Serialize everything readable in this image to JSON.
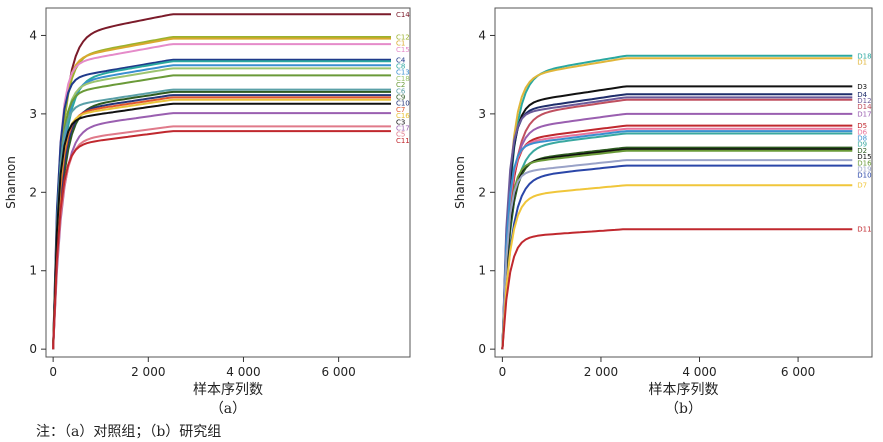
{
  "footnote": "注：（a）对照组；（b）研究组",
  "chart_data": [
    {
      "type": "line",
      "panel": "（a）",
      "xlabel": "样本序列数",
      "ylabel": "Shannon",
      "xticks": [
        "0",
        "2 000",
        "4 000",
        "6 000"
      ],
      "yticks": [
        "0",
        "1",
        "2",
        "3",
        "4"
      ],
      "xlim": [
        -150,
        7500
      ],
      "ylim": [
        -0.1,
        4.35
      ],
      "series": [
        {
          "name": "C14",
          "final": 4.27,
          "color": "#7b1b2a"
        },
        {
          "name": "C12",
          "final": 3.98,
          "color": "#9bb22d"
        },
        {
          "name": "C1",
          "final": 3.96,
          "color": "#d9a92e"
        },
        {
          "name": "C15",
          "final": 3.89,
          "color": "#e58bc9"
        },
        {
          "name": "C4",
          "final": 3.69,
          "color": "#1f3a8a"
        },
        {
          "name": "C8",
          "final": 3.67,
          "color": "#2aa8a0"
        },
        {
          "name": "C13",
          "final": 3.62,
          "color": "#3a8fd0"
        },
        {
          "name": "C18",
          "final": 3.58,
          "color": "#9cc46f"
        },
        {
          "name": "C2",
          "final": 3.49,
          "color": "#6a9a38"
        },
        {
          "name": "C6",
          "final": 3.31,
          "color": "#5aa0a8"
        },
        {
          "name": "C9",
          "final": 3.28,
          "color": "#2d5a20"
        },
        {
          "name": "C10",
          "final": 3.24,
          "color": "#25357a"
        },
        {
          "name": "C7",
          "final": 3.21,
          "color": "#e0572e"
        },
        {
          "name": "C16",
          "final": 3.18,
          "color": "#e8c23a"
        },
        {
          "name": "C3",
          "final": 3.13,
          "color": "#111111"
        },
        {
          "name": "C17",
          "final": 3.01,
          "color": "#9a5fb0"
        },
        {
          "name": "C5",
          "final": 2.84,
          "color": "#e07a8a"
        },
        {
          "name": "C11",
          "final": 2.78,
          "color": "#c0282e"
        }
      ]
    },
    {
      "type": "line",
      "panel": "（b）",
      "xlabel": "样本序列数",
      "ylabel": "Shannon",
      "xticks": [
        "0",
        "2 000",
        "4 000",
        "6 000"
      ],
      "yticks": [
        "0",
        "1",
        "2",
        "3",
        "4"
      ],
      "xlim": [
        -150,
        7500
      ],
      "ylim": [
        -0.1,
        4.35
      ],
      "series": [
        {
          "name": "D18",
          "final": 3.74,
          "color": "#2aa8a0"
        },
        {
          "name": "D1",
          "final": 3.71,
          "color": "#e0b63a"
        },
        {
          "name": "D3",
          "final": 3.35,
          "color": "#111111"
        },
        {
          "name": "D4",
          "final": 3.25,
          "color": "#1f2d6b"
        },
        {
          "name": "D12",
          "final": 3.21,
          "color": "#6b5a9a"
        },
        {
          "name": "D14",
          "final": 3.18,
          "color": "#c05060"
        },
        {
          "name": "D17",
          "final": 3.0,
          "color": "#9a5fb0"
        },
        {
          "name": "D5",
          "final": 2.85,
          "color": "#c0282e"
        },
        {
          "name": "D6",
          "final": 2.81,
          "color": "#e8739a"
        },
        {
          "name": "D8",
          "final": 2.78,
          "color": "#3a8fd0"
        },
        {
          "name": "D9",
          "final": 2.75,
          "color": "#3aa8a0"
        },
        {
          "name": "D2",
          "final": 2.57,
          "color": "#2d5a20"
        },
        {
          "name": "D15",
          "final": 2.55,
          "color": "#111111"
        },
        {
          "name": "D16",
          "final": 2.53,
          "color": "#6a9a38"
        },
        {
          "name": "D19",
          "final": 2.41,
          "color": "#9aa3c8"
        },
        {
          "name": "D10",
          "final": 2.34,
          "color": "#2a46a8"
        },
        {
          "name": "D7",
          "final": 2.09,
          "color": "#f0c63a"
        },
        {
          "name": "D11",
          "final": 1.53,
          "color": "#c0282e"
        }
      ]
    }
  ]
}
